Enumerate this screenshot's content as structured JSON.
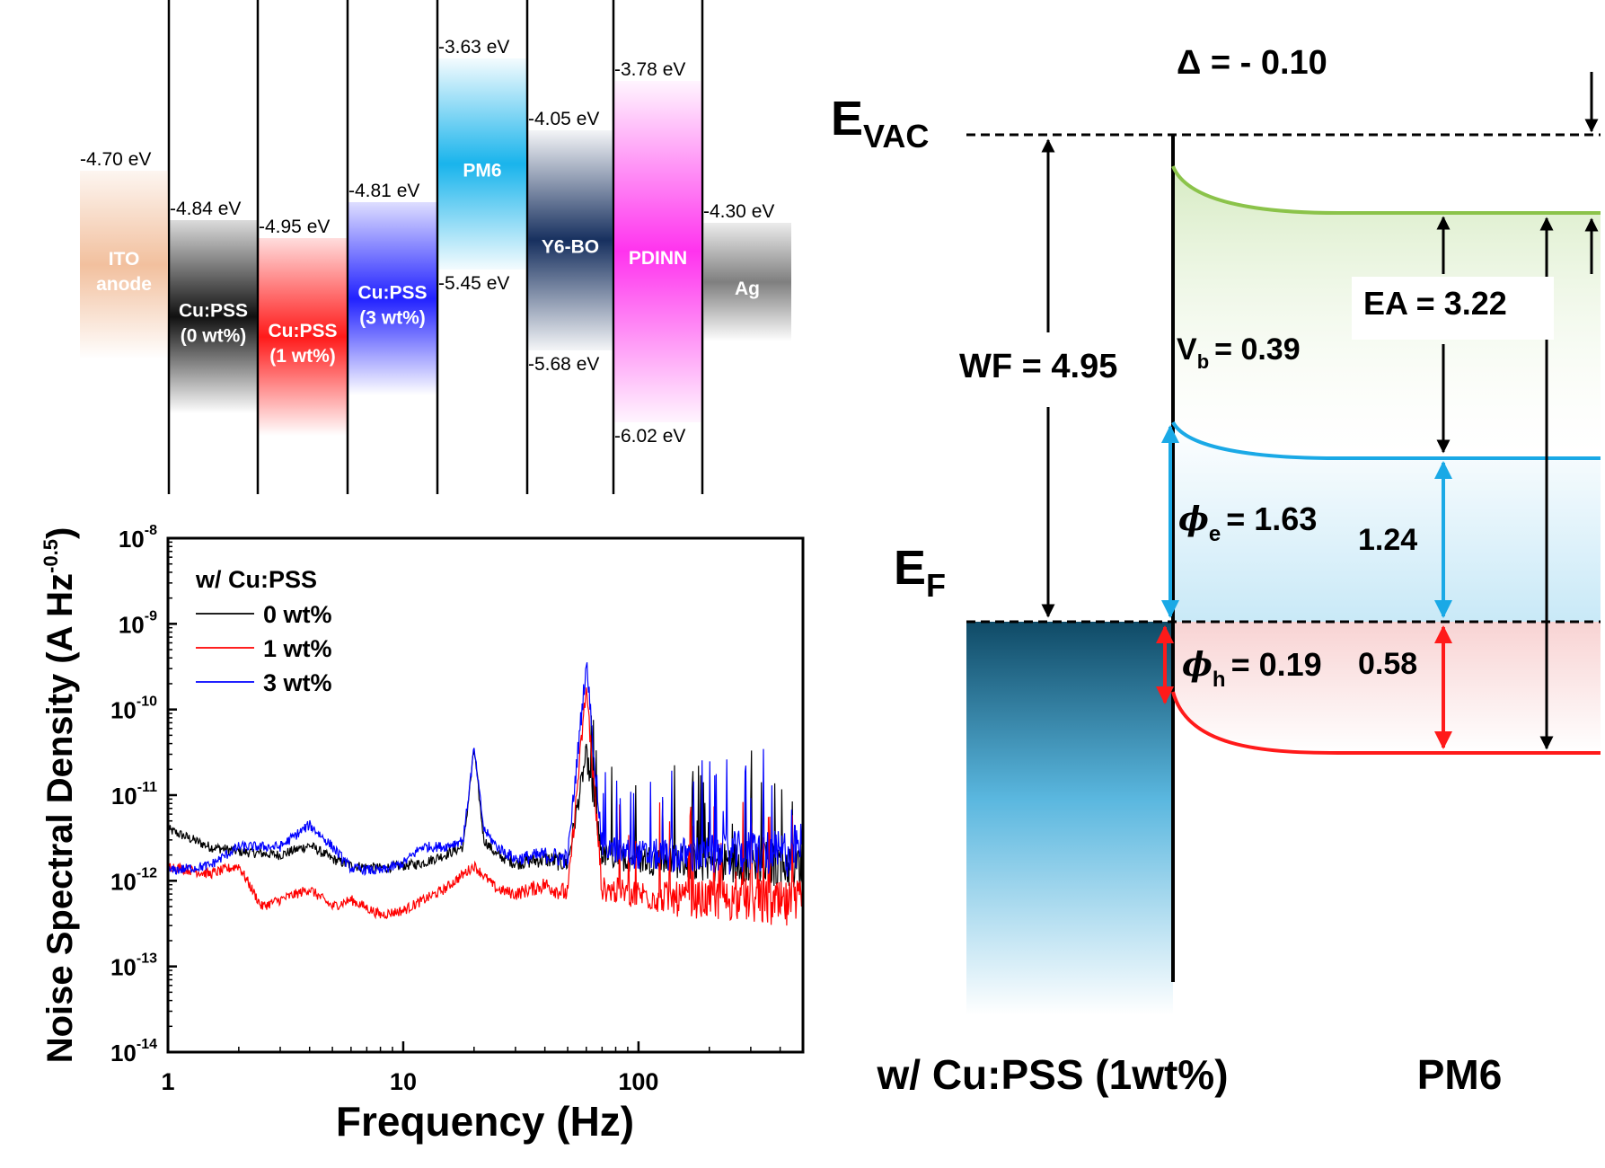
{
  "levels": {
    "layers": [
      {
        "name": "ITO anode",
        "label_lines": [
          "ITO",
          "anode"
        ],
        "top": "-4.70 eV",
        "bottom": "",
        "color": "#f2c09e",
        "label_color": "#ffffff"
      },
      {
        "name": "Cu:PSS (0 wt%)",
        "label_lines": [
          "Cu:PSS",
          "(0 wt%)"
        ],
        "top": "-4.84 eV",
        "bottom": "",
        "color": "#111111",
        "label_color": "#ffffff"
      },
      {
        "name": "Cu:PSS (1 wt%)",
        "label_lines": [
          "Cu:PSS",
          "(1 wt%)"
        ],
        "top": "-4.95 eV",
        "bottom": "",
        "color": "#ff1a1a",
        "label_color": "#ffffff"
      },
      {
        "name": "Cu:PSS (3 wt%)",
        "label_lines": [
          "Cu:PSS",
          "(3 wt%)"
        ],
        "top": "-4.81 eV",
        "bottom": "",
        "color": "#2222ff",
        "label_color": "#ffffff"
      },
      {
        "name": "PM6",
        "label_lines": [
          "PM6"
        ],
        "top": "-3.63 eV",
        "bottom": "-5.45 eV",
        "color": "#19b4ec",
        "label_color": "#ffffff"
      },
      {
        "name": "Y6-BO",
        "label_lines": [
          "Y6-BO"
        ],
        "top": "-4.05 eV",
        "bottom": "-5.68 eV",
        "color": "#17305f",
        "label_color": "#ffffff"
      },
      {
        "name": "PDINN",
        "label_lines": [
          "PDINN"
        ],
        "top": "-3.78 eV",
        "bottom": "-6.02 eV",
        "color": "#ff33ee",
        "label_color": "#ffffff"
      },
      {
        "name": "Ag",
        "label_lines": [
          "Ag"
        ],
        "top": "-4.30 eV",
        "bottom": "",
        "color": "#7f7f7f",
        "label_color": "#ffffff"
      }
    ]
  },
  "noise_chart": {
    "ylabel": "Noise Spectral Density (A Hz",
    "ylabel_sup": "-0.5",
    "ylabel_end": ")",
    "xlabel": "Frequency (Hz)",
    "legend_title": "w/ Cu:PSS",
    "legend_placement": "top-left",
    "y_ticks": [
      {
        "base": "10",
        "exp": "-8"
      },
      {
        "base": "10",
        "exp": "-9"
      },
      {
        "base": "10",
        "exp": "-10"
      },
      {
        "base": "10",
        "exp": "-11"
      },
      {
        "base": "10",
        "exp": "-12"
      },
      {
        "base": "10",
        "exp": "-13"
      },
      {
        "base": "10",
        "exp": "-14"
      }
    ],
    "x_ticks": [
      "1",
      "10",
      "100"
    ]
  },
  "chart_data": {
    "type": "line",
    "x_scale": "log",
    "y_scale": "log",
    "xlim": [
      1,
      500
    ],
    "ylim": [
      1e-14,
      1e-08
    ],
    "xlabel": "Frequency (Hz)",
    "ylabel": "Noise Spectral Density (A Hz^-0.5)",
    "grid": false,
    "legend": "top-left",
    "series": [
      {
        "name": "0 wt%",
        "color": "#000000",
        "x": [
          1,
          1.5,
          2,
          3,
          4,
          5,
          6,
          8,
          10,
          12,
          15,
          18,
          20,
          22,
          25,
          30,
          40,
          50,
          60,
          70,
          100,
          150,
          200,
          300,
          400,
          500
        ],
        "y": [
          4e-12,
          2.5e-12,
          2.2e-12,
          2e-12,
          2.6e-12,
          1.8e-12,
          1.5e-12,
          1.4e-12,
          1.5e-12,
          1.6e-12,
          2e-12,
          2.5e-12,
          3.5e-11,
          3e-12,
          2e-12,
          1.6e-12,
          1.8e-12,
          1.6e-12,
          3e-11,
          2e-12,
          1.8e-12,
          1.7e-12,
          1.6e-12,
          1.7e-12,
          1.6e-12,
          1.5e-12
        ]
      },
      {
        "name": "1 wt%",
        "color": "#ff0000",
        "x": [
          1,
          1.5,
          2,
          2.5,
          3,
          4,
          5,
          6,
          8,
          10,
          15,
          20,
          25,
          30,
          40,
          50,
          60,
          70,
          100,
          150,
          200,
          300,
          400,
          500
        ],
        "y": [
          1.5e-12,
          1.2e-12,
          1.5e-12,
          5e-13,
          6e-13,
          8e-13,
          5e-13,
          6e-13,
          4e-13,
          4.5e-13,
          8e-13,
          1.5e-12,
          8e-13,
          7e-13,
          9e-13,
          7e-13,
          1.8e-10,
          8e-13,
          7e-13,
          6e-13,
          6e-13,
          6e-13,
          5e-13,
          5e-13
        ]
      },
      {
        "name": "3 wt%",
        "color": "#0000ff",
        "x": [
          1,
          1.5,
          2,
          3,
          4,
          5,
          6,
          8,
          10,
          12,
          15,
          18,
          20,
          22,
          25,
          30,
          40,
          50,
          60,
          70,
          100,
          150,
          200,
          300,
          400,
          500
        ],
        "y": [
          1.3e-12,
          1.5e-12,
          2.5e-12,
          2.5e-12,
          4.5e-12,
          2.5e-12,
          1.4e-12,
          1.3e-12,
          1.6e-12,
          2.5e-12,
          2.5e-12,
          3e-12,
          3.5e-11,
          4e-12,
          2.5e-12,
          1.8e-12,
          2e-12,
          1.8e-12,
          3.5e-10,
          2.5e-12,
          2e-12,
          2e-12,
          2e-12,
          2.2e-12,
          2e-12,
          2.5e-12
        ]
      }
    ]
  },
  "band_diagram": {
    "evac_main": "E",
    "evac_sub": "VAC",
    "ef_main": "E",
    "ef_sub": "F",
    "delta": "Δ = - 0.10",
    "wf": "WF = 4.95",
    "vb_main": "V",
    "vb_sub": "b",
    "vb_value": "=  0.39",
    "ea": "EA = 3.22",
    "phi_e_symbol": "ϕ",
    "phi_e_sub": "e",
    "phi_e_value": "= 1.63",
    "phi_h_symbol": "ϕ",
    "phi_h_sub": "h",
    "phi_h_value": "= 0.19",
    "gap_e": "1.24",
    "gap_h": "0.58",
    "left_label": "w/ Cu:PSS (1wt%)",
    "right_label": "PM6",
    "colors": {
      "lumo": "#8bc34a",
      "electron": "#1aa9e6",
      "hole": "#ff1a1a",
      "metal": "#0f4a66"
    }
  }
}
